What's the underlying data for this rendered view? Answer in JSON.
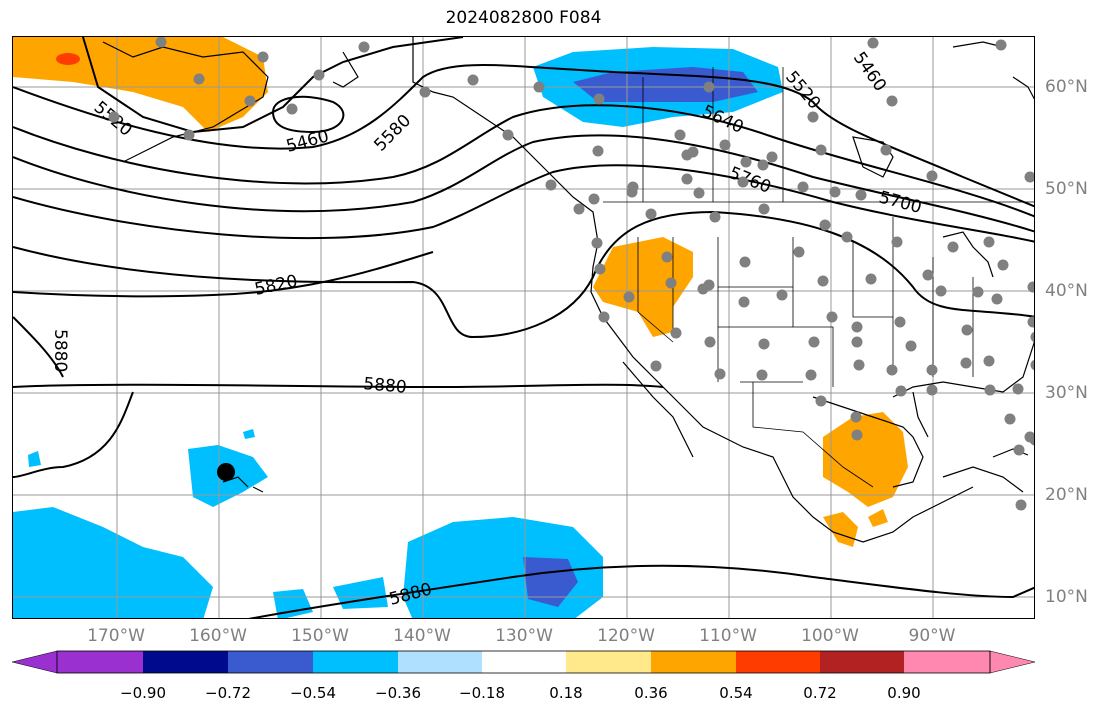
{
  "title": "2024082800 F084",
  "lon_labels": [
    "170°W",
    "160°W",
    "150°W",
    "140°W",
    "130°W",
    "120°W",
    "110°W",
    "100°W",
    "90°W"
  ],
  "lat_labels": [
    "60°N",
    "50°N",
    "40°N",
    "30°N",
    "20°N",
    "10°N"
  ],
  "contour_labels": [
    "5520",
    "5460",
    "5580",
    "5520",
    "5460",
    "5640",
    "5760",
    "5700",
    "5820",
    "5880",
    "5880",
    "5880"
  ],
  "colorbar": {
    "ticks": [
      "−0.90",
      "−0.72",
      "−0.54",
      "−0.36",
      "−0.18",
      "0.18",
      "0.36",
      "0.54",
      "0.72",
      "0.90"
    ],
    "colors": [
      "#9b30d0",
      "#000a8c",
      "#3a5bd0",
      "#00bfff",
      "#b0e0ff",
      "#ffffff",
      "#ffe98a",
      "#ffa500",
      "#ff3c00",
      "#b22222",
      "#ff88b0"
    ]
  }
}
